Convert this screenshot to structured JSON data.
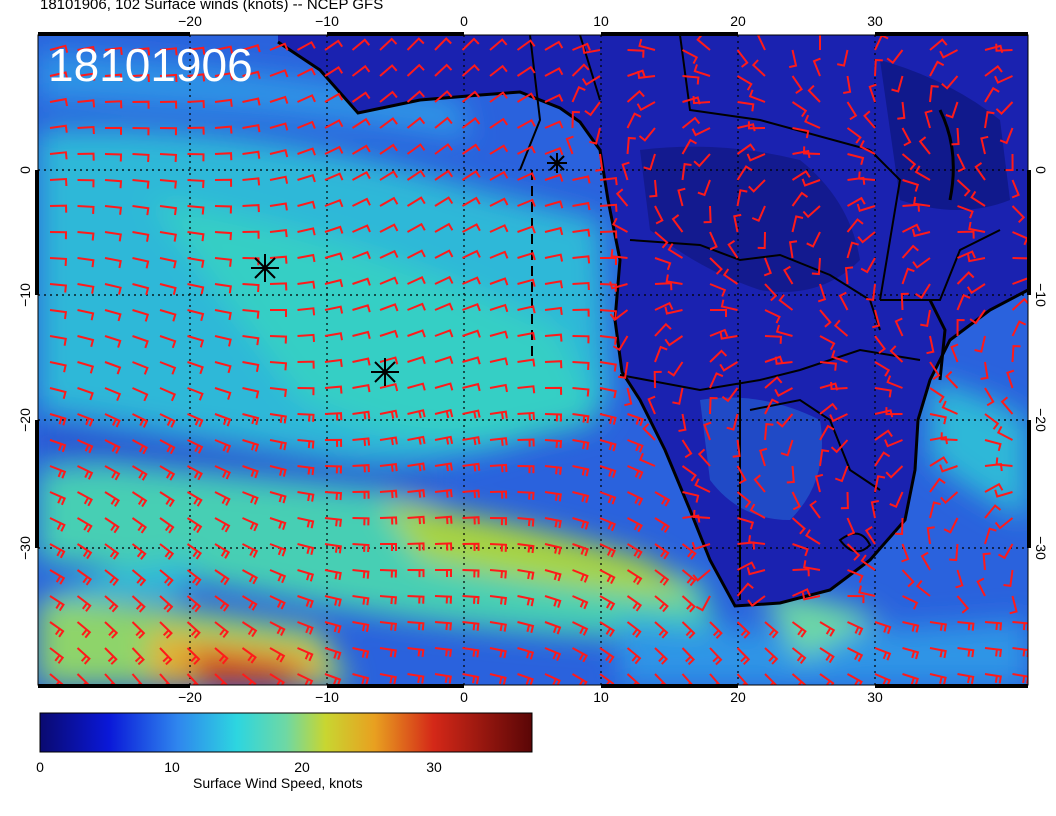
{
  "header": {
    "title": "18101906, 102 Surface winds (knots) -- NCEP GFS"
  },
  "map": {
    "stamp": "18101906",
    "lon_ticks": [
      "−20",
      "−10",
      "0",
      "10",
      "20",
      "30"
    ],
    "lat_ticks": [
      "0",
      "−10",
      "−20",
      "−30"
    ],
    "colors": {
      "land_deep": "#1a1fa8",
      "ocean_calm": "#2f6be0",
      "ocean_mid": "#2fc6cf",
      "ocean_strong": "#c8d631",
      "max": "#c41a10",
      "barb": "#ff1a1a",
      "coast": "#000000"
    }
  },
  "colorbar": {
    "title": "Surface Wind Speed, knots",
    "ticks": [
      "0",
      "10",
      "20",
      "30"
    ],
    "range": [
      0,
      36
    ]
  }
}
